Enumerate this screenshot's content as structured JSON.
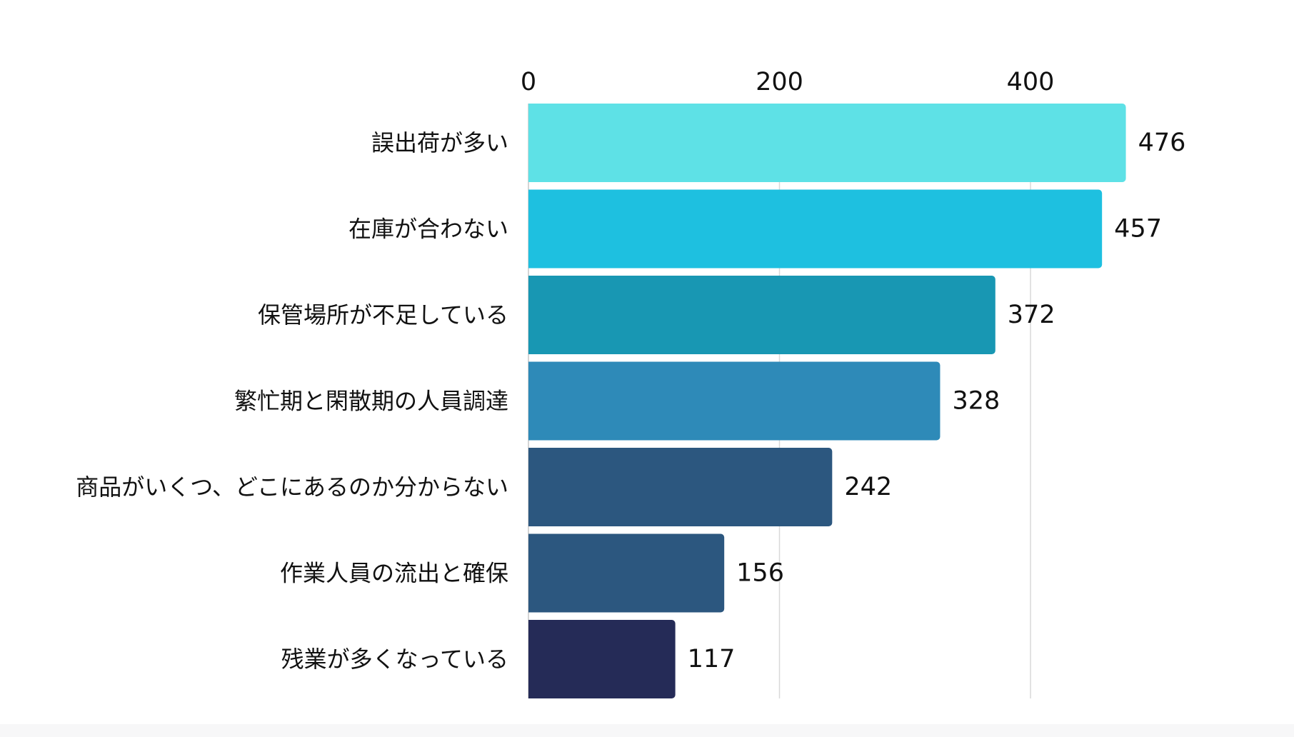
{
  "chart_data": {
    "type": "bar",
    "orientation": "horizontal",
    "title": "",
    "xlabel": "",
    "ylabel": "",
    "xlim": [
      0,
      525
    ],
    "x_ticks": [
      0,
      200,
      400
    ],
    "grid": true,
    "categories": [
      "誤出荷が多い",
      "在庫が合わない",
      "保管場所が不足している",
      "繁忙期と閑散期の人員調達",
      "商品がいくつ、どこにあるのか分からない",
      "作業人員の流出と確保",
      "残業が多くなっている"
    ],
    "values": [
      476,
      457,
      372,
      328,
      242,
      156,
      117
    ],
    "colors": [
      "#5ee1e6",
      "#1ec0e0",
      "#1897b3",
      "#2e8ab8",
      "#2c577f",
      "#2c577f",
      "#252b57"
    ],
    "data_labels": [
      "476",
      "457",
      "372",
      "328",
      "242",
      "156",
      "117"
    ]
  }
}
